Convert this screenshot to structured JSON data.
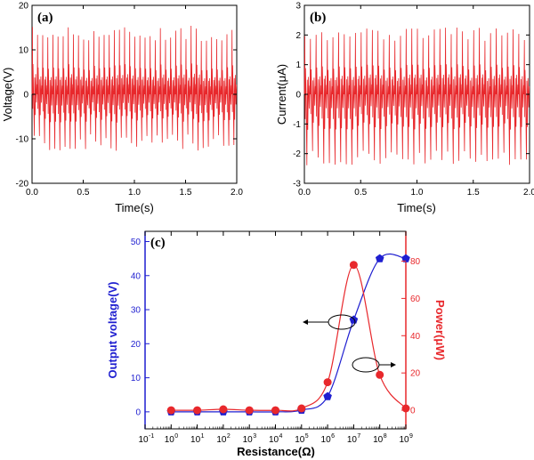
{
  "chart_data": [
    {
      "type": "line",
      "panel_label": "(a)",
      "xlabel": "Time(s)",
      "ylabel": "Voltage(V)",
      "xlim": [
        0.0,
        2.0
      ],
      "ylim": [
        -20,
        20
      ],
      "x_ticks": [
        "0.0",
        "0.5",
        "1.0",
        "1.5",
        "2.0"
      ],
      "y_ticks": [
        "-20",
        "-10",
        "0",
        "10",
        "20"
      ],
      "series": [
        {
          "name": "Voltage",
          "color": "#e8282c",
          "waveform": {
            "frequency_hz": 20,
            "cycles": 40,
            "peak_max": 15.5,
            "peak_min": 12.0,
            "trough_min": -13.0,
            "trough_max": -9.0
          }
        }
      ]
    },
    {
      "type": "line",
      "panel_label": "(b)",
      "xlabel": "Time(s)",
      "ylabel": "Current(μA)",
      "xlim": [
        0.0,
        2.0
      ],
      "ylim": [
        -3,
        3
      ],
      "x_ticks": [
        "0.0",
        "0.5",
        "1.0",
        "1.5",
        "2.0"
      ],
      "y_ticks": [
        "-3",
        "-2",
        "-1",
        "0",
        "1",
        "2",
        "3"
      ],
      "series": [
        {
          "name": "Current",
          "color": "#e8282c",
          "waveform": {
            "frequency_hz": 20,
            "cycles": 40,
            "peak_max": 2.3,
            "peak_min": 1.8,
            "trough_min": -2.4,
            "trough_max": -1.9
          }
        }
      ]
    },
    {
      "type": "scatter",
      "panel_label": "(c)",
      "xlabel": "Resistance(Ω)",
      "ylabel": "Output voltage(V)",
      "ylabel_right": "Power(μW)",
      "x_scale": "log",
      "xlim_exponent": [
        -1,
        9
      ],
      "x_tick_exponents": [
        "-1",
        "0",
        "1",
        "2",
        "3",
        "4",
        "5",
        "6",
        "7",
        "8",
        "9"
      ],
      "ylim": [
        -5,
        53
      ],
      "ylim_right": [
        -10,
        96
      ],
      "y_ticks": [
        "0",
        "10",
        "20",
        "30",
        "40",
        "50"
      ],
      "y_ticks_right": [
        "0",
        "20",
        "40",
        "60",
        "80"
      ],
      "x_log10": [
        0,
        1,
        2,
        3,
        4,
        5,
        6,
        7,
        8,
        9
      ],
      "series": [
        {
          "name": "Output voltage",
          "axis": "left",
          "color": "#1f1fd0",
          "marker": "pentagon",
          "values": [
            0,
            0,
            0,
            0,
            0,
            0.5,
            4.5,
            27,
            45,
            45
          ]
        },
        {
          "name": "Power",
          "axis": "right",
          "color": "#e8282c",
          "marker": "circle",
          "values": [
            0,
            0,
            0.5,
            0,
            0,
            1,
            15,
            78,
            19,
            1
          ]
        }
      ]
    }
  ]
}
